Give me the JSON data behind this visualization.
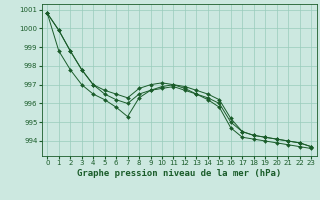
{
  "x": [
    0,
    1,
    2,
    3,
    4,
    5,
    6,
    7,
    8,
    9,
    10,
    11,
    12,
    13,
    14,
    15,
    16,
    17,
    18,
    19,
    20,
    21,
    22,
    23
  ],
  "series1": [
    1000.8,
    999.9,
    998.8,
    997.8,
    997.0,
    996.5,
    996.2,
    996.0,
    996.5,
    996.7,
    996.8,
    996.9,
    996.7,
    996.5,
    996.3,
    996.0,
    995.0,
    994.5,
    994.3,
    994.2,
    994.1,
    994.0,
    993.9,
    993.7
  ],
  "series2": [
    1000.8,
    999.9,
    998.8,
    997.8,
    997.0,
    996.7,
    996.5,
    996.3,
    996.8,
    997.0,
    997.1,
    997.0,
    996.9,
    996.7,
    996.5,
    996.2,
    995.2,
    994.5,
    994.3,
    994.2,
    994.1,
    994.0,
    993.9,
    993.7
  ],
  "series3": [
    1000.8,
    998.8,
    997.8,
    997.0,
    996.5,
    996.2,
    995.8,
    995.3,
    996.3,
    996.7,
    996.9,
    997.0,
    996.8,
    996.5,
    996.2,
    995.8,
    994.7,
    994.2,
    994.1,
    994.0,
    993.9,
    993.8,
    993.7,
    993.6
  ],
  "line_color": "#1a5c2a",
  "marker_color": "#1a5c2a",
  "bg_color": "#cce8e0",
  "grid_color": "#99ccbb",
  "title": "Graphe pression niveau de la mer (hPa)",
  "ylim_min": 993.2,
  "ylim_max": 1001.3,
  "yticks": [
    994,
    995,
    996,
    997,
    998,
    999,
    1000,
    1001
  ],
  "xticks": [
    0,
    1,
    2,
    3,
    4,
    5,
    6,
    7,
    8,
    9,
    10,
    11,
    12,
    13,
    14,
    15,
    16,
    17,
    18,
    19,
    20,
    21,
    22,
    23
  ],
  "title_fontsize": 6.5,
  "tick_fontsize": 5.0,
  "figwidth": 3.2,
  "figheight": 2.0,
  "dpi": 100
}
